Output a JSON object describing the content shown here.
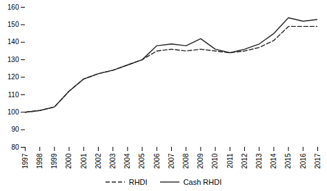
{
  "chart_data": {
    "type": "line",
    "x": [
      1997,
      1998,
      1999,
      2000,
      2001,
      2002,
      2003,
      2004,
      2005,
      2006,
      2007,
      2008,
      2009,
      2010,
      2011,
      2012,
      2013,
      2014,
      2015,
      2016,
      2017
    ],
    "series": [
      {
        "name": "RHDI",
        "color": "#222222",
        "line_style": "dashed",
        "values": [
          100,
          101,
          103,
          112,
          119,
          122,
          124,
          127,
          130,
          135,
          136,
          135,
          136,
          135,
          134,
          135,
          137,
          141,
          149,
          149,
          149
        ]
      },
      {
        "name": "Cash RHDI",
        "color": "#222222",
        "line_style": "solid",
        "values": [
          100,
          101,
          103,
          112,
          119,
          122,
          124,
          127,
          130,
          138,
          139,
          138,
          142,
          136,
          134,
          136,
          139,
          145,
          154,
          152,
          153
        ]
      }
    ],
    "xlim": [
      1997,
      2017
    ],
    "xticks": [
      1997,
      1998,
      1999,
      2000,
      2001,
      2002,
      2003,
      2004,
      2005,
      2006,
      2007,
      2008,
      2009,
      2010,
      2011,
      2012,
      2013,
      2014,
      2015,
      2016,
      2017
    ],
    "ylim": [
      80,
      160
    ],
    "yticks": [
      80,
      90,
      100,
      110,
      120,
      130,
      140,
      150,
      160
    ],
    "grid": false,
    "legend": "bottom"
  }
}
